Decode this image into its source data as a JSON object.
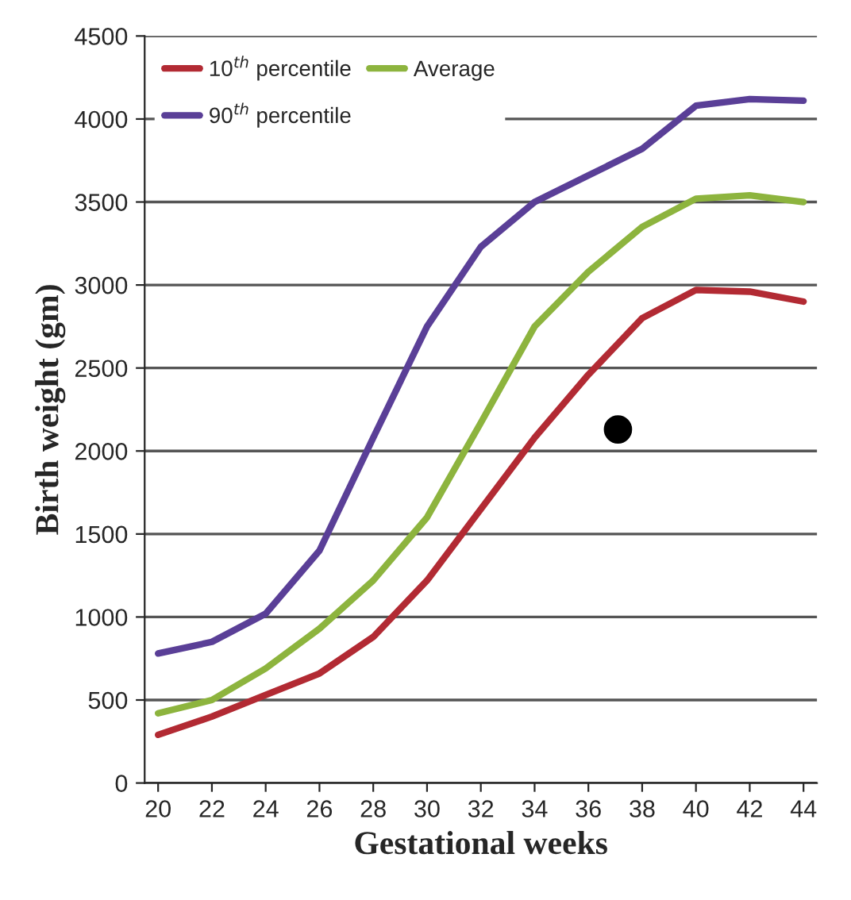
{
  "chart_data": {
    "type": "line",
    "xlabel": "Gestational weeks",
    "ylabel": "Birth weight (gm)",
    "x": [
      20,
      22,
      24,
      26,
      28,
      30,
      32,
      34,
      36,
      38,
      40,
      42,
      44
    ],
    "series": [
      {
        "name": "10$^{th}$ percentile",
        "color": "#b22a33",
        "values": [
          290,
          400,
          530,
          660,
          880,
          1220,
          1650,
          2080,
          2460,
          2800,
          2970,
          2960,
          2900
        ]
      },
      {
        "name": "Average",
        "color": "#8db43e",
        "values": [
          420,
          500,
          690,
          930,
          1220,
          1600,
          2170,
          2750,
          3080,
          3350,
          3520,
          3540,
          3500
        ]
      },
      {
        "name": "90$^{th}$ percentile",
        "color": "#5a3f97",
        "values": [
          780,
          850,
          1020,
          1400,
          2080,
          2750,
          3230,
          3500,
          3660,
          3820,
          4080,
          4120,
          4110
        ]
      },
      {
        "type": "scatter",
        "marker": "circle",
        "color": "#000000",
        "x": [
          37.1
        ],
        "values": [
          2130
        ]
      }
    ],
    "xlim": [
      19.5,
      44.5
    ],
    "ylim": [
      0,
      4500
    ],
    "xticks": [
      20,
      22,
      24,
      26,
      28,
      30,
      32,
      34,
      36,
      38,
      40,
      42,
      44
    ],
    "yticks": [
      0,
      500,
      1000,
      1500,
      2000,
      2500,
      3000,
      3500,
      4000,
      4500
    ],
    "grid": "y",
    "legend": "top left",
    "marker": "none",
    "line_style": "solid"
  }
}
